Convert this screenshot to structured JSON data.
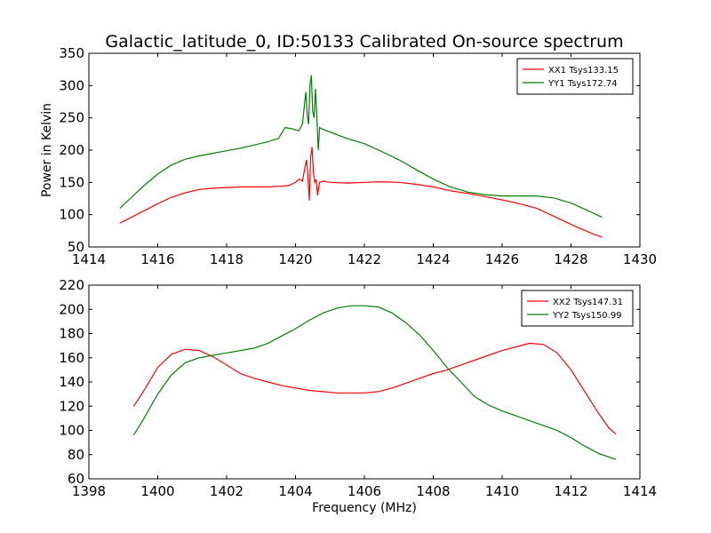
{
  "title": "Galactic_latitude_0, ID:50133 Calibrated On-source spectrum",
  "xlabel": "Frequency (MHz)",
  "ylabel": "Power in Kelvin",
  "chart_data": [
    {
      "type": "line",
      "xlim": [
        1414,
        1430
      ],
      "ylim": [
        50,
        350
      ],
      "xticks": [
        1414,
        1416,
        1418,
        1420,
        1422,
        1424,
        1426,
        1428,
        1430
      ],
      "yticks": [
        50,
        100,
        150,
        200,
        250,
        300,
        350
      ],
      "legend_position": "top-right",
      "series": [
        {
          "name": "XX1 Tsys133.15",
          "color": "#ff0000",
          "x": [
            1414.9,
            1415.2,
            1415.6,
            1416.0,
            1416.4,
            1416.8,
            1417.2,
            1417.6,
            1418.0,
            1418.4,
            1418.8,
            1419.2,
            1419.5,
            1419.8,
            1420.0,
            1420.1,
            1420.2,
            1420.28,
            1420.32,
            1420.36,
            1420.4,
            1420.44,
            1420.48,
            1420.52,
            1420.56,
            1420.6,
            1420.64,
            1420.7,
            1420.8,
            1421.0,
            1421.5,
            1422.0,
            1422.5,
            1423.0,
            1423.5,
            1424.0,
            1424.5,
            1425.0,
            1425.5,
            1426.0,
            1426.5,
            1427.0,
            1427.4,
            1427.8,
            1428.2,
            1428.6,
            1428.9
          ],
          "y": [
            87,
            95,
            106,
            117,
            127,
            134,
            139,
            141,
            142,
            143,
            143,
            143,
            144,
            145,
            150,
            155,
            152,
            175,
            185,
            160,
            122,
            190,
            205,
            165,
            150,
            155,
            130,
            150,
            152,
            150,
            149,
            150,
            151,
            150,
            147,
            143,
            137,
            133,
            128,
            123,
            117,
            110,
            100,
            90,
            80,
            71,
            65
          ]
        },
        {
          "name": "YY1 Tsys172.74",
          "color": "#008000",
          "x": [
            1414.9,
            1415.2,
            1415.6,
            1416.0,
            1416.4,
            1416.8,
            1417.2,
            1417.6,
            1418.0,
            1418.4,
            1418.8,
            1419.2,
            1419.5,
            1419.7,
            1419.9,
            1420.1,
            1420.2,
            1420.26,
            1420.3,
            1420.34,
            1420.38,
            1420.42,
            1420.46,
            1420.5,
            1420.54,
            1420.58,
            1420.62,
            1420.66,
            1420.7,
            1420.8,
            1421.0,
            1421.5,
            1422.0,
            1422.5,
            1423.0,
            1423.5,
            1424.0,
            1424.5,
            1425.0,
            1425.5,
            1426.0,
            1426.5,
            1427.0,
            1427.5,
            1428.0,
            1428.5,
            1428.9
          ],
          "y": [
            110,
            125,
            145,
            163,
            177,
            186,
            191,
            195,
            199,
            203,
            208,
            213,
            218,
            235,
            233,
            230,
            240,
            270,
            290,
            255,
            240,
            300,
            316,
            260,
            250,
            295,
            250,
            200,
            235,
            232,
            228,
            218,
            210,
            198,
            185,
            170,
            155,
            143,
            135,
            131,
            129,
            129,
            129,
            126,
            118,
            106,
            96
          ]
        }
      ]
    },
    {
      "type": "line",
      "xlim": [
        1398,
        1414
      ],
      "ylim": [
        60,
        220
      ],
      "xticks": [
        1398,
        1400,
        1402,
        1404,
        1406,
        1408,
        1410,
        1412,
        1414
      ],
      "yticks": [
        60,
        80,
        100,
        120,
        140,
        160,
        180,
        200,
        220
      ],
      "legend_position": "top-right",
      "series": [
        {
          "name": "XX2 Tsys147.31",
          "color": "#ff0000",
          "x": [
            1399.3,
            1399.6,
            1400.0,
            1400.4,
            1400.8,
            1401.2,
            1401.6,
            1402.0,
            1402.4,
            1402.8,
            1403.2,
            1403.6,
            1404.0,
            1404.4,
            1404.8,
            1405.2,
            1405.6,
            1406.0,
            1406.4,
            1406.8,
            1407.2,
            1407.6,
            1408.0,
            1408.4,
            1408.8,
            1409.2,
            1409.6,
            1410.0,
            1410.4,
            1410.8,
            1411.2,
            1411.6,
            1412.0,
            1412.4,
            1412.8,
            1413.1,
            1413.3
          ],
          "y": [
            120,
            133,
            152,
            163,
            167,
            166,
            161,
            154,
            147,
            143,
            140,
            137,
            135,
            133,
            132,
            131,
            131,
            131,
            132,
            135,
            139,
            143,
            147,
            150,
            154,
            158,
            162,
            166,
            169,
            172,
            171,
            164,
            150,
            132,
            114,
            102,
            97
          ]
        },
        {
          "name": "YY2 Tsys150.99",
          "color": "#008000",
          "x": [
            1399.3,
            1399.6,
            1400.0,
            1400.4,
            1400.8,
            1401.2,
            1401.6,
            1402.0,
            1402.4,
            1402.8,
            1403.2,
            1403.6,
            1404.0,
            1404.4,
            1404.8,
            1405.2,
            1405.6,
            1406.0,
            1406.4,
            1406.8,
            1407.2,
            1407.6,
            1408.0,
            1408.4,
            1408.8,
            1409.2,
            1409.6,
            1410.0,
            1410.4,
            1410.8,
            1411.2,
            1411.6,
            1412.0,
            1412.4,
            1412.8,
            1413.1,
            1413.3
          ],
          "y": [
            96,
            110,
            130,
            146,
            156,
            160,
            162,
            164,
            166,
            168,
            172,
            178,
            184,
            191,
            197,
            201,
            203,
            203,
            202,
            197,
            189,
            179,
            166,
            152,
            140,
            128,
            121,
            116,
            112,
            108,
            104,
            100,
            94,
            87,
            81,
            78,
            76
          ]
        }
      ]
    }
  ]
}
